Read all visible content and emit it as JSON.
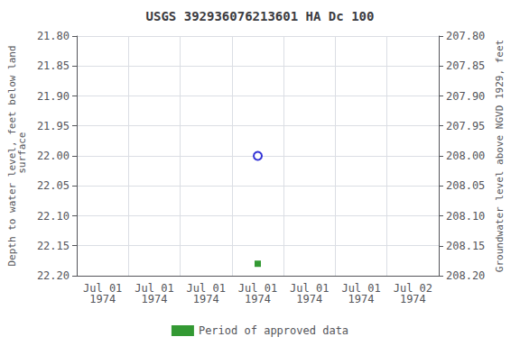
{
  "chart_data": {
    "type": "scatter",
    "title": "USGS 392936076213601 HA Dc 100",
    "y_label": "Depth to water level, feet below land\n surface",
    "y2_label": "Groundwater level above NGVD 1929, feet",
    "categories": [
      "Jul 01\n1974",
      "Jul 01\n1974",
      "Jul 01\n1974",
      "Jul 01\n1974",
      "Jul 01\n1974",
      "Jul 01\n1974",
      "Jul 02\n1974"
    ],
    "ylim": [
      22.2,
      21.8
    ],
    "yticks": [
      {
        "value": 21.8,
        "label": "21.80"
      },
      21.85,
      {
        "value": 21.9,
        "label": "21.90"
      },
      21.95,
      {
        "value": 22.0,
        "label": "22.00"
      },
      22.05,
      {
        "value": 22.1,
        "label": "22.10"
      },
      22.15,
      {
        "value": 22.2,
        "label": "22.20"
      }
    ],
    "y2lim": [
      208.2,
      207.8
    ],
    "y2ticks": [
      {
        "value": 208.2,
        "label": "208.20"
      },
      208.15,
      {
        "value": 208.1,
        "label": "208.10"
      },
      208.05,
      {
        "value": 208.0,
        "label": "208.00"
      },
      207.95,
      {
        "value": 207.9,
        "label": "207.90"
      },
      207.85,
      {
        "value": 207.8,
        "label": "207.80"
      }
    ],
    "series": [
      {
        "color": "#0000cc",
        "marker": "open_circle",
        "values": [
          null,
          null,
          null,
          22.0,
          null,
          null,
          null
        ]
      },
      {
        "name": "Period of approved data",
        "color": "#008000",
        "marker": "square",
        "values": [
          null,
          null,
          null,
          22.18,
          null,
          null,
          null
        ]
      }
    ],
    "grid": true,
    "legend": "bottom"
  }
}
